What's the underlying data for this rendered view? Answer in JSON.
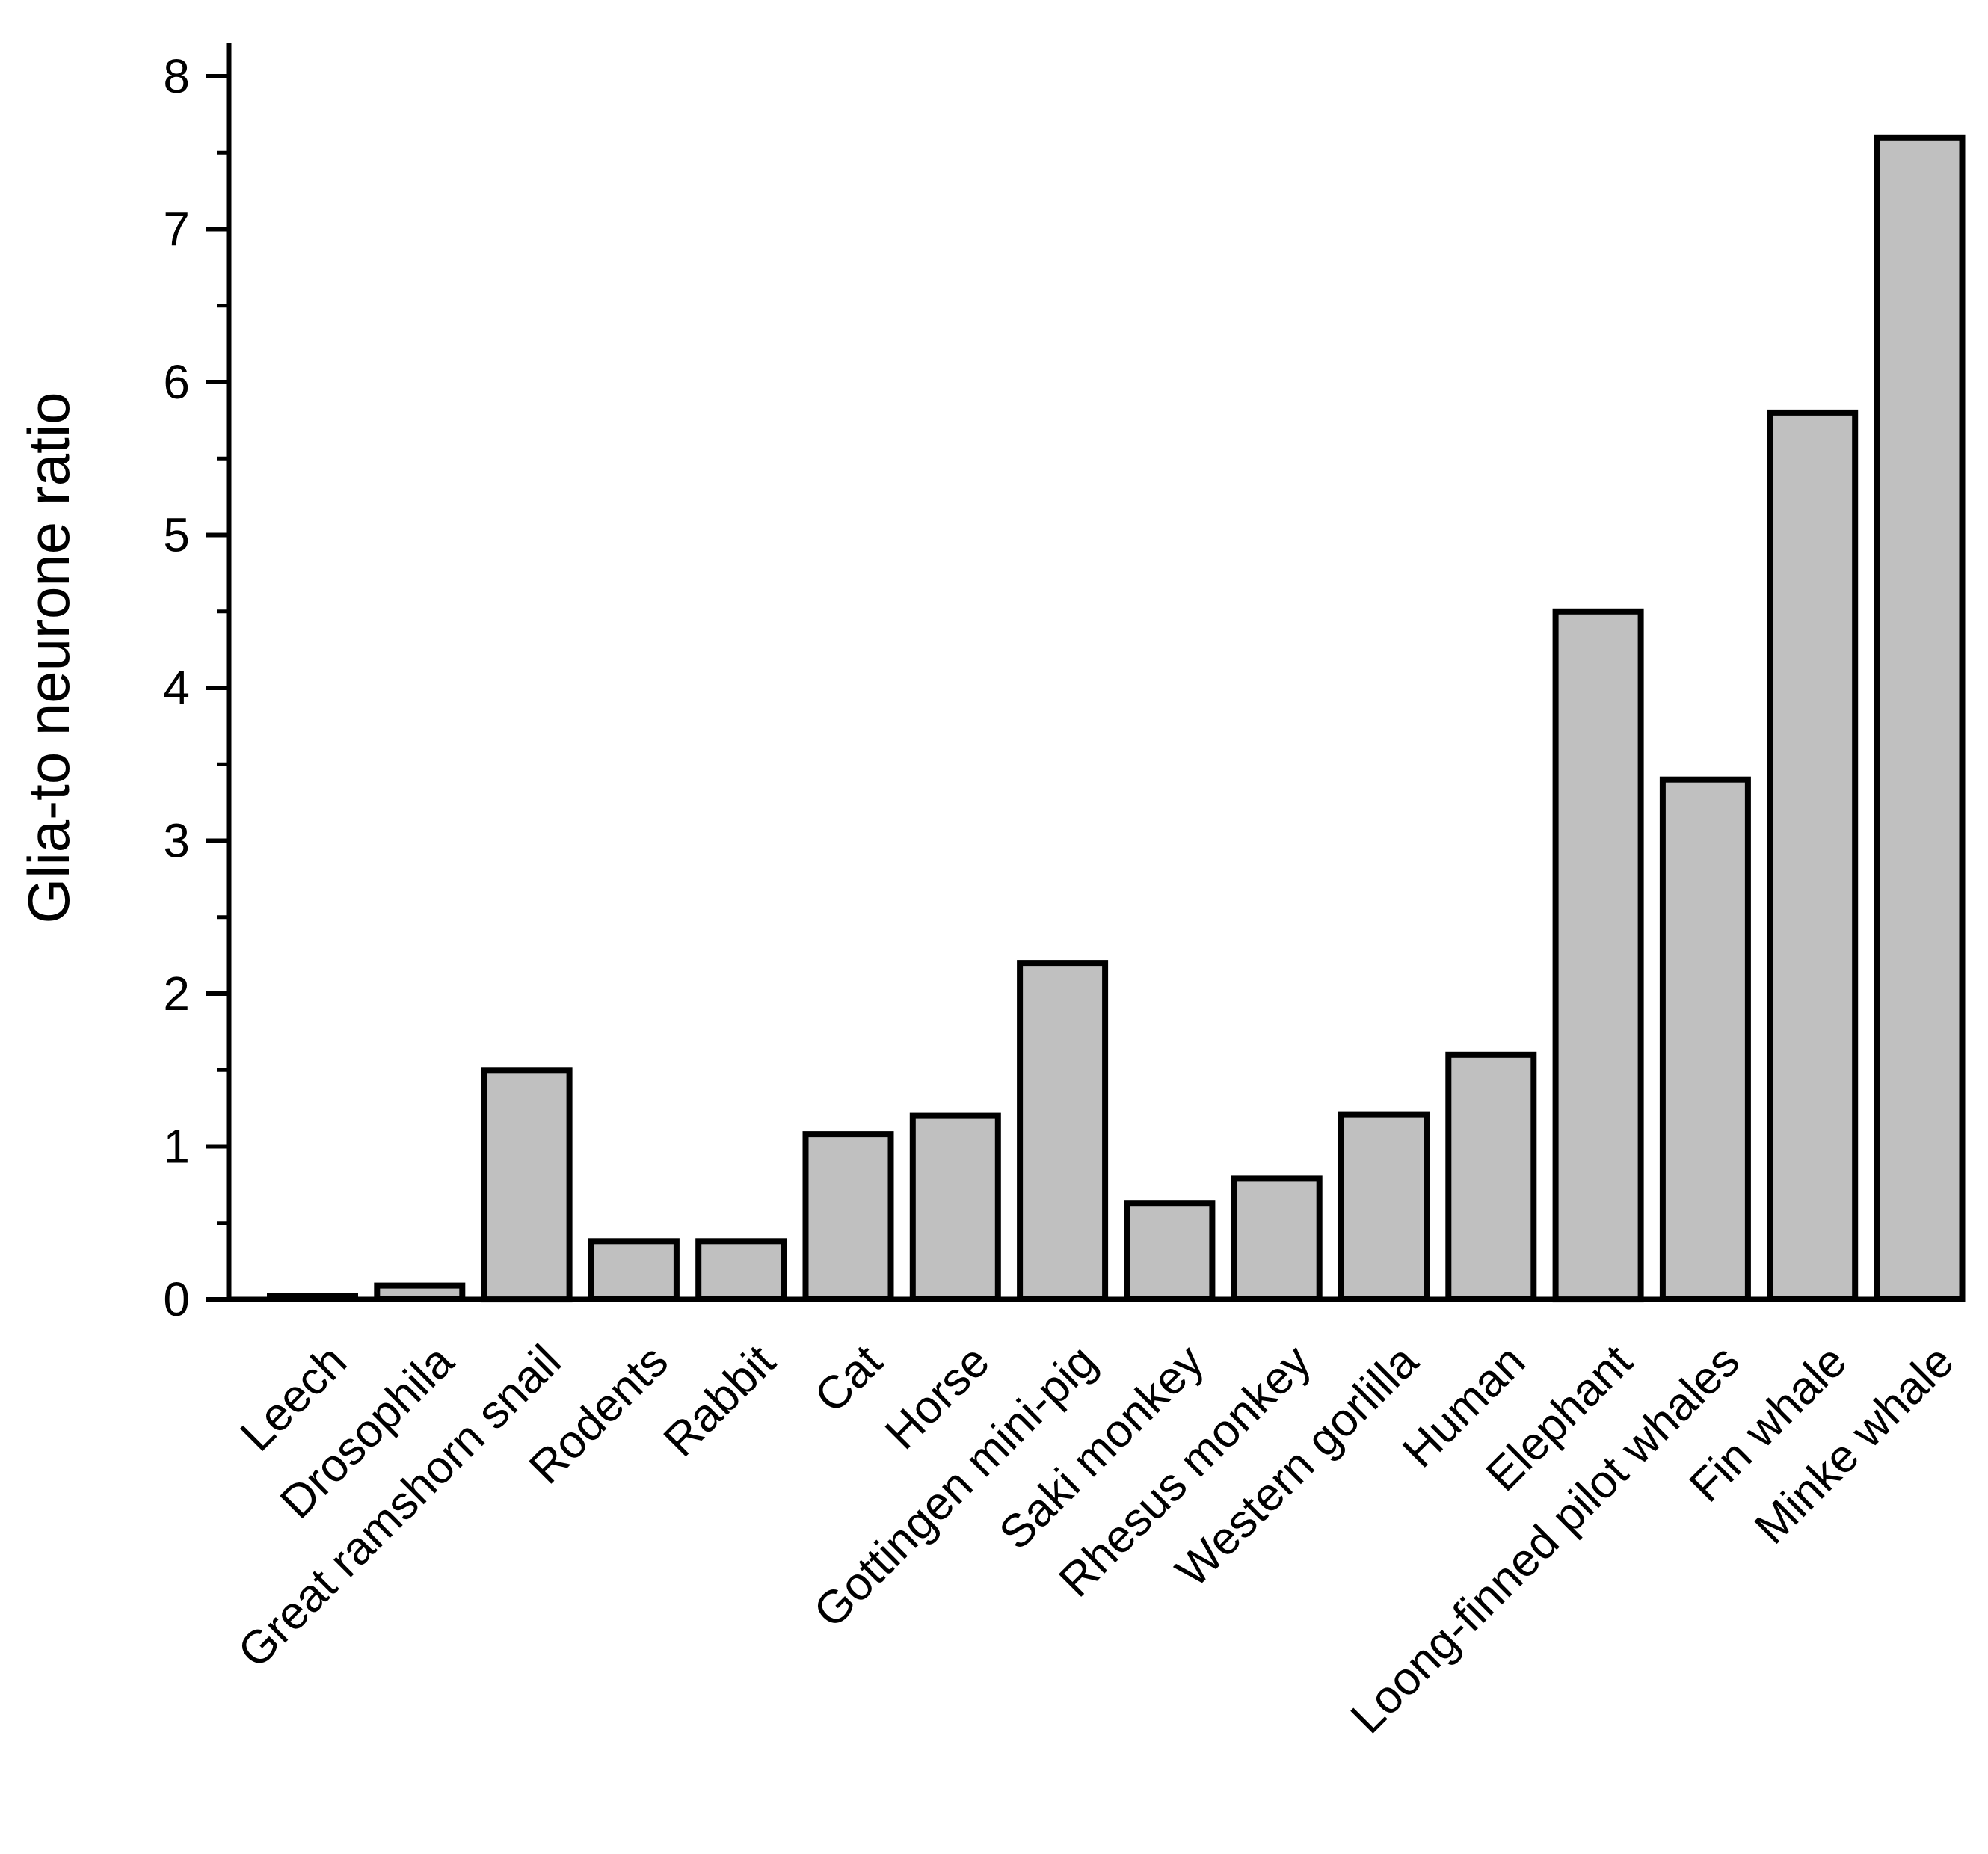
{
  "chart_data": {
    "type": "bar",
    "title": "",
    "xlabel": "",
    "ylabel": "Glia-to neurone ratio",
    "ylim": [
      0,
      8
    ],
    "y_ticks": [
      "0",
      "1",
      "2",
      "3",
      "4",
      "5",
      "6",
      "7",
      "8"
    ],
    "y_tick_values": [
      0,
      1,
      2,
      3,
      4,
      5,
      6,
      7,
      8
    ],
    "grid": false,
    "legend": "none",
    "categories": [
      "Leech",
      "Drosophila",
      "Great ramshorn snail",
      "Rodents",
      "Rabbit",
      "Cat",
      "Horse",
      "Gottingen mini-pig",
      "Saki monkey",
      "Rhesus monkey",
      "Western gorlilla",
      "Human",
      "Elephant",
      "Loong-finned pilot whales",
      "Fin whale",
      "Minke whale"
    ],
    "values": [
      0.02,
      0.09,
      1.5,
      0.38,
      0.38,
      1.08,
      1.2,
      2.2,
      0.63,
      0.79,
      1.21,
      1.6,
      4.5,
      3.4,
      5.8,
      7.6
    ],
    "bar_color": "#c0c0c0",
    "edge_color": "#000000"
  }
}
